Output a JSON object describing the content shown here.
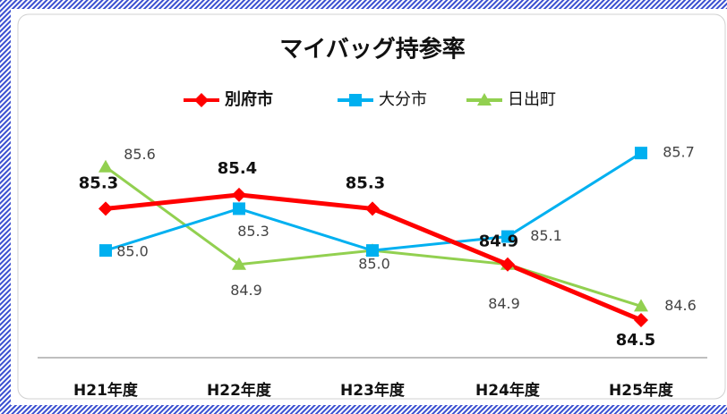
{
  "chart_data": {
    "type": "line",
    "title": "マイバッグ持参率",
    "categories": [
      "H21年度",
      "H22年度",
      "H23年度",
      "H24年度",
      "H25年度"
    ],
    "series": [
      {
        "name": "別府市",
        "color": "#ff0000",
        "marker": "diamond",
        "values": [
          85.3,
          85.4,
          85.3,
          84.9,
          84.5
        ],
        "value_labels": [
          "85.3",
          "85.4",
          "85.3",
          "84.9",
          "84.5"
        ]
      },
      {
        "name": "大分市",
        "color": "#00b0f0",
        "marker": "square",
        "values": [
          85.0,
          85.3,
          85.0,
          85.1,
          85.7
        ],
        "value_labels": [
          "85.0",
          "85.3",
          "85.0",
          "85.1",
          "85.7"
        ]
      },
      {
        "name": "日出町",
        "color": "#92d050",
        "marker": "triangle",
        "values": [
          85.6,
          84.9,
          85.0,
          84.9,
          84.6
        ],
        "value_labels": [
          "85.6",
          "84.9",
          "85.0",
          "84.9",
          "84.6"
        ]
      }
    ],
    "ylim": [
      84.23,
      85.9
    ]
  }
}
